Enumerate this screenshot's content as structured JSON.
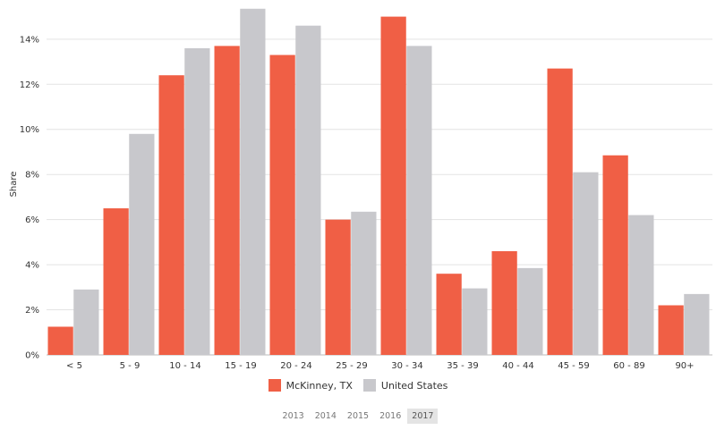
{
  "chart_data": {
    "type": "bar",
    "title": "",
    "xlabel": "",
    "ylabel": "Share",
    "categories": [
      "< 5",
      "5 - 9",
      "10 - 14",
      "15 - 19",
      "20 - 24",
      "25 - 29",
      "30 - 34",
      "35 - 39",
      "40 - 44",
      "45 - 59",
      "60 - 89",
      "90+"
    ],
    "ylim": [
      0,
      15.5
    ],
    "yticks": [
      "0%",
      "2%",
      "4%",
      "6%",
      "8%",
      "10%",
      "12%",
      "14%"
    ],
    "ytick_values": [
      0,
      2,
      4,
      6,
      8,
      10,
      12,
      14
    ],
    "grid": true,
    "legend_position": "bottom",
    "series": [
      {
        "name": "McKinney, TX",
        "color": "#f05f45",
        "values": [
          1.25,
          6.5,
          12.4,
          13.7,
          13.3,
          6.0,
          15.0,
          3.6,
          4.6,
          12.7,
          8.85,
          2.2
        ]
      },
      {
        "name": "United States",
        "color": "#c8c8cc",
        "values": [
          2.9,
          9.8,
          13.6,
          15.35,
          14.6,
          6.35,
          13.7,
          2.95,
          3.85,
          8.1,
          6.2,
          2.7
        ]
      }
    ]
  },
  "years": {
    "options": [
      "2013",
      "2014",
      "2015",
      "2016",
      "2017"
    ],
    "selected": "2017"
  }
}
